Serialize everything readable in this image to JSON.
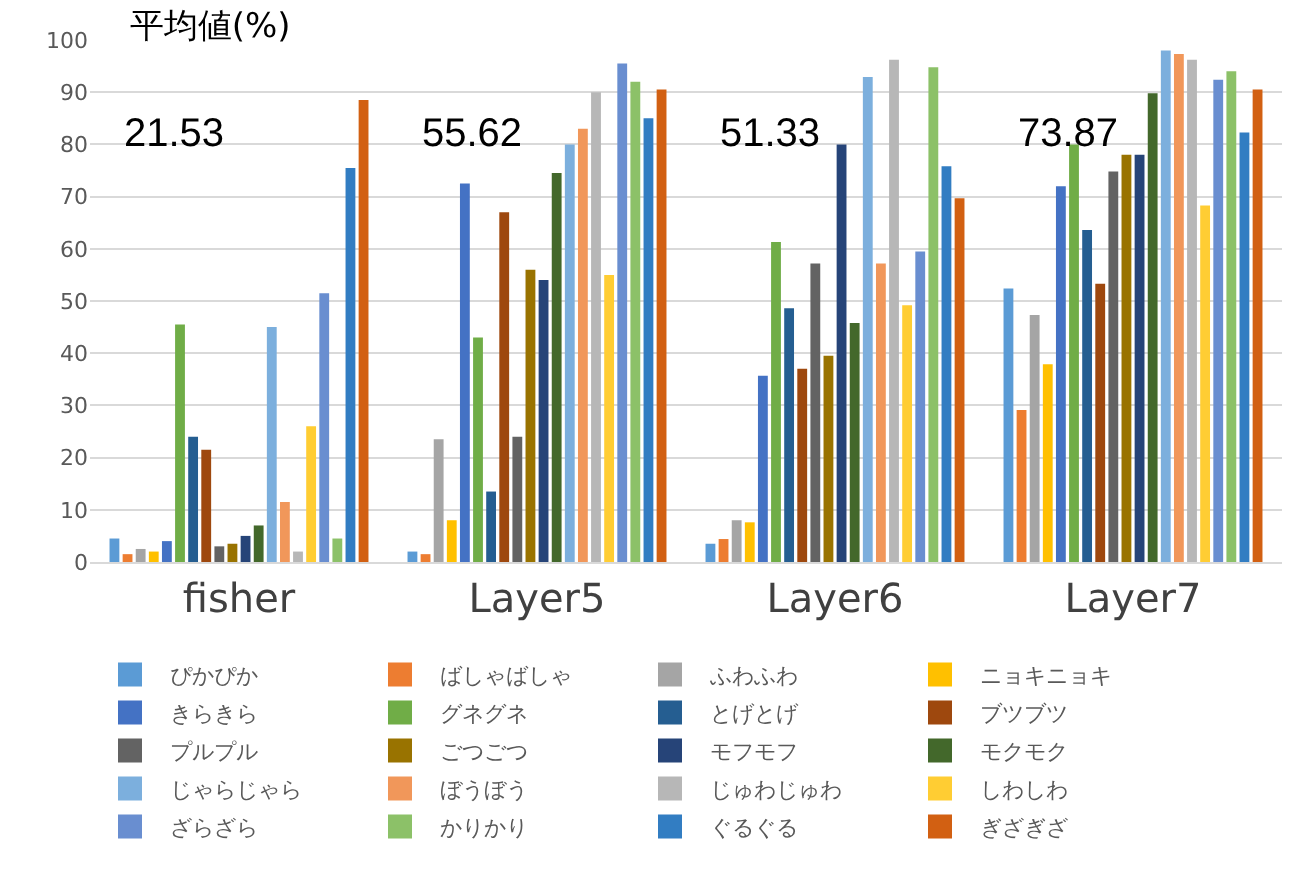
{
  "chart_data": {
    "type": "bar",
    "title": "平均値(%)",
    "categories": [
      "fisher",
      "Layer5",
      "Layer6",
      "Layer7"
    ],
    "annotations": [
      "21.53",
      "55.62",
      "51.33",
      "73.87"
    ],
    "ylim": [
      0,
      100
    ],
    "yticks": [
      0,
      10,
      20,
      30,
      40,
      50,
      60,
      70,
      80,
      90,
      100
    ],
    "grid": "y",
    "legend": "bottom",
    "series": [
      {
        "name": "ぴかぴか",
        "color": "#5b9bd5",
        "values": [
          4.5,
          2,
          3.5,
          52.4
        ]
      },
      {
        "name": "ばしゃばしゃ",
        "color": "#ed7d31",
        "values": [
          1.5,
          1.5,
          4.4,
          29.1
        ]
      },
      {
        "name": "ふわふわ",
        "color": "#a5a5a5",
        "values": [
          2.5,
          23.5,
          8,
          47.3
        ]
      },
      {
        "name": "ニョキニョキ",
        "color": "#ffc000",
        "values": [
          2,
          8,
          7.6,
          37.9
        ]
      },
      {
        "name": "きらきら",
        "color": "#4472c4",
        "values": [
          4,
          72.5,
          35.7,
          72
        ]
      },
      {
        "name": "グネグネ",
        "color": "#70ad47",
        "values": [
          45.5,
          43,
          61.3,
          80
        ]
      },
      {
        "name": "とげとげ",
        "color": "#255e91",
        "values": [
          24,
          13.5,
          48.6,
          63.6
        ]
      },
      {
        "name": "ブツブツ",
        "color": "#9e480e",
        "values": [
          21.5,
          67,
          37,
          53.3
        ]
      },
      {
        "name": "プルプル",
        "color": "#636363",
        "values": [
          3,
          24,
          57.2,
          74.8
        ]
      },
      {
        "name": "ごつごつ",
        "color": "#997300",
        "values": [
          3.5,
          56,
          39.5,
          78
        ]
      },
      {
        "name": "モフモフ",
        "color": "#264478",
        "values": [
          5,
          54,
          80,
          78
        ]
      },
      {
        "name": "モクモク",
        "color": "#43682b",
        "values": [
          7,
          74.5,
          45.8,
          89.8
        ]
      },
      {
        "name": "じゃらじゃら",
        "color": "#7cafdd",
        "values": [
          45,
          80,
          92.9,
          98
        ]
      },
      {
        "name": "ぼうぼう",
        "color": "#f1975a",
        "values": [
          11.5,
          83,
          57.2,
          97.3
        ]
      },
      {
        "name": "じゅわじゅわ",
        "color": "#b7b7b7",
        "values": [
          2,
          90,
          96.2,
          96.2
        ]
      },
      {
        "name": "しわしわ",
        "color": "#ffcd33",
        "values": [
          26,
          55,
          49.2,
          68.3
        ]
      },
      {
        "name": "ざらざら",
        "color": "#698ed0",
        "values": [
          51.5,
          95.5,
          59.5,
          92.4
        ]
      },
      {
        "name": "かりかり",
        "color": "#8cc168",
        "values": [
          4.5,
          92,
          94.8,
          94
        ]
      },
      {
        "name": "ぐるぐる",
        "color": "#327dc2",
        "values": [
          75.5,
          85,
          75.8,
          82.3
        ]
      },
      {
        "name": "ぎざぎざ",
        "color": "#d26012",
        "values": [
          88.5,
          90.5,
          69.7,
          90.5
        ]
      }
    ]
  }
}
